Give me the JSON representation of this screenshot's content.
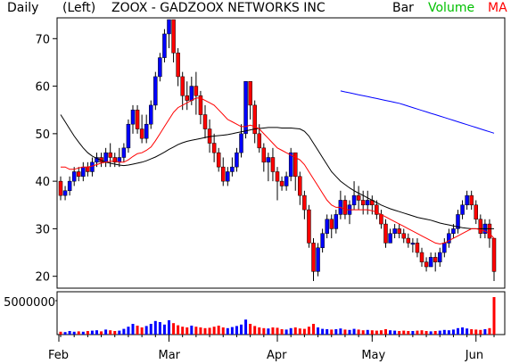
{
  "header": {
    "period": "Daily",
    "scale": "(Left)",
    "title": "ZOOX - GADZOOX NETWORKS INC",
    "bar_label": "Bar",
    "volume_label": "Volume",
    "ma_label": "MA"
  },
  "colors": {
    "background": "#ffffff",
    "up": "#0000ff",
    "down": "#ff0000",
    "ma_fast": "#ff0000",
    "ma_mid": "#000000",
    "ma_slow": "#0000ff",
    "volume_label": "#00c000",
    "ma_label": "#ff0000"
  },
  "chart_data": {
    "type": "candlestick",
    "price_axis": {
      "ticks": [
        20,
        30,
        40,
        50,
        60,
        70
      ],
      "range": [
        17.5,
        74
      ]
    },
    "volume_axis": {
      "ticks": [
        "5000000"
      ],
      "max": 5000000
    },
    "months": [
      "Feb",
      "Mar",
      "Apr",
      "May",
      "Jun"
    ],
    "candles": [
      [
        40,
        37,
        41,
        36
      ],
      [
        37,
        38,
        39,
        36
      ],
      [
        38,
        40,
        41,
        37
      ],
      [
        40,
        42,
        43,
        39
      ],
      [
        42,
        41,
        43,
        40
      ],
      [
        41,
        43,
        44,
        40
      ],
      [
        43,
        42,
        44,
        41
      ],
      [
        42,
        44,
        45,
        41
      ],
      [
        44,
        45,
        46,
        43
      ],
      [
        45,
        44,
        46,
        43
      ],
      [
        44,
        46,
        47,
        43
      ],
      [
        46,
        45,
        48,
        43
      ],
      [
        45,
        44,
        46,
        43
      ],
      [
        44,
        45,
        47,
        43
      ],
      [
        45,
        47,
        48,
        44
      ],
      [
        47,
        52,
        53,
        46
      ],
      [
        52,
        55,
        56,
        50
      ],
      [
        55,
        51,
        56,
        50
      ],
      [
        51,
        49,
        54,
        48
      ],
      [
        49,
        52,
        54,
        48
      ],
      [
        52,
        56,
        57,
        51
      ],
      [
        56,
        62,
        63,
        55
      ],
      [
        62,
        66,
        67,
        61
      ],
      [
        66,
        71,
        72,
        65
      ],
      [
        71,
        74,
        74,
        68
      ],
      [
        74,
        67,
        74,
        65
      ],
      [
        67,
        62,
        68,
        60
      ],
      [
        62,
        58,
        63,
        55
      ],
      [
        58,
        57,
        61,
        55
      ],
      [
        57,
        60,
        62,
        56
      ],
      [
        60,
        58,
        63,
        54
      ],
      [
        58,
        54,
        59,
        52
      ],
      [
        54,
        51,
        56,
        49
      ],
      [
        51,
        48,
        53,
        46
      ],
      [
        48,
        46,
        50,
        44
      ],
      [
        46,
        43,
        47,
        42
      ],
      [
        43,
        40,
        45,
        39
      ],
      [
        40,
        42,
        43,
        39
      ],
      [
        42,
        43,
        45,
        41
      ],
      [
        43,
        46,
        47,
        42
      ],
      [
        46,
        50,
        52,
        45
      ],
      [
        50,
        61,
        61,
        49
      ],
      [
        61,
        56,
        61,
        53
      ],
      [
        56,
        50,
        57,
        48
      ],
      [
        50,
        47,
        52,
        46
      ],
      [
        47,
        44,
        48,
        42
      ],
      [
        44,
        45,
        46,
        40
      ],
      [
        45,
        42,
        47,
        40
      ],
      [
        42,
        40,
        43,
        36
      ],
      [
        40,
        39,
        41,
        38
      ],
      [
        39,
        41,
        42,
        38
      ],
      [
        41,
        46,
        47,
        40
      ],
      [
        46,
        41,
        46,
        38
      ],
      [
        41,
        37,
        42,
        35
      ],
      [
        37,
        34,
        38,
        32
      ],
      [
        34,
        27,
        35,
        26
      ],
      [
        27,
        21,
        28,
        19
      ],
      [
        21,
        26,
        27,
        20
      ],
      [
        26,
        29,
        30,
        25
      ],
      [
        29,
        32,
        33,
        28
      ],
      [
        32,
        30,
        33,
        28
      ],
      [
        30,
        33,
        34,
        29
      ],
      [
        33,
        36,
        38,
        32
      ],
      [
        36,
        33,
        37,
        32
      ],
      [
        33,
        35,
        36,
        31
      ],
      [
        35,
        37,
        40,
        34
      ],
      [
        37,
        36,
        39,
        34
      ],
      [
        36,
        35,
        38,
        33
      ],
      [
        35,
        36,
        38,
        33
      ],
      [
        36,
        35,
        37,
        33
      ],
      [
        35,
        33,
        36,
        32
      ],
      [
        33,
        31,
        34,
        30
      ],
      [
        31,
        27,
        32,
        26
      ],
      [
        27,
        29,
        30,
        27
      ],
      [
        29,
        30,
        31,
        28
      ],
      [
        30,
        29,
        31,
        28
      ],
      [
        29,
        28,
        30,
        27
      ],
      [
        28,
        27,
        29,
        26
      ],
      [
        27,
        27,
        28,
        25
      ],
      [
        27,
        25,
        28,
        24
      ],
      [
        25,
        23,
        26,
        22
      ],
      [
        23,
        22,
        24,
        21
      ],
      [
        22,
        24,
        25,
        22
      ],
      [
        24,
        23,
        25,
        21
      ],
      [
        23,
        25,
        26,
        22
      ],
      [
        25,
        27,
        28,
        24
      ],
      [
        27,
        29,
        30,
        26
      ],
      [
        29,
        30,
        31,
        28
      ],
      [
        30,
        33,
        34,
        29
      ],
      [
        33,
        35,
        36,
        32
      ],
      [
        35,
        37,
        38,
        34
      ],
      [
        37,
        35,
        38,
        34
      ],
      [
        35,
        32,
        36,
        31
      ],
      [
        32,
        29,
        33,
        28
      ],
      [
        29,
        31,
        32,
        28
      ],
      [
        31,
        28,
        32,
        26
      ],
      [
        28,
        21,
        28,
        19
      ]
    ],
    "volume": [
      0.08,
      0.07,
      0.1,
      0.08,
      0.09,
      0.08,
      0.1,
      0.11,
      0.12,
      0.09,
      0.14,
      0.12,
      0.1,
      0.11,
      0.16,
      0.22,
      0.3,
      0.25,
      0.2,
      0.24,
      0.3,
      0.38,
      0.35,
      0.28,
      0.4,
      0.32,
      0.26,
      0.22,
      0.2,
      0.25,
      0.22,
      0.2,
      0.18,
      0.19,
      0.22,
      0.25,
      0.2,
      0.18,
      0.21,
      0.24,
      0.28,
      0.42,
      0.3,
      0.24,
      0.2,
      0.18,
      0.17,
      0.2,
      0.19,
      0.15,
      0.14,
      0.18,
      0.2,
      0.17,
      0.16,
      0.22,
      0.3,
      0.2,
      0.16,
      0.15,
      0.14,
      0.15,
      0.17,
      0.14,
      0.13,
      0.16,
      0.14,
      0.12,
      0.13,
      0.12,
      0.11,
      0.12,
      0.15,
      0.12,
      0.11,
      0.1,
      0.11,
      0.1,
      0.1,
      0.11,
      0.12,
      0.1,
      0.09,
      0.1,
      0.11,
      0.13,
      0.12,
      0.14,
      0.18,
      0.2,
      0.17,
      0.15,
      0.14,
      0.13,
      0.15,
      0.18,
      1.05
    ],
    "ma_fast": [
      43,
      43,
      42.5,
      42.5,
      42.8,
      43,
      43,
      43.2,
      43.5,
      43.8,
      44,
      44.2,
      44.2,
      44,
      44,
      44.5,
      45.2,
      45.8,
      46,
      46.5,
      47.2,
      48.5,
      50,
      51.5,
      53,
      54.5,
      55.5,
      56,
      56.5,
      57,
      57.5,
      57.5,
      57,
      56.5,
      56,
      55,
      54,
      53,
      52.5,
      52,
      51.5,
      51.5,
      51.8,
      51.5,
      51,
      50,
      49,
      48,
      47,
      46.5,
      46,
      45.5,
      45,
      44.5,
      43.5,
      42,
      40.5,
      39,
      37.5,
      36,
      35,
      34.5,
      34.5,
      34,
      34,
      34,
      34,
      34,
      34,
      33.8,
      33.5,
      33,
      32.5,
      32,
      31.5,
      31,
      30.5,
      30,
      29.5,
      29,
      28.5,
      28,
      27.5,
      27,
      26.8,
      27,
      27.5,
      28,
      28.5,
      29,
      29.5,
      30,
      30,
      29.8,
      29.5,
      29,
      28
    ],
    "ma_mid": [
      54,
      52.5,
      51,
      49.5,
      48.2,
      47,
      46,
      45.3,
      44.8,
      44.4,
      44,
      43.8,
      43.6,
      43.4,
      43.3,
      43.4,
      43.6,
      43.8,
      44,
      44.3,
      44.7,
      45.1,
      45.6,
      46.1,
      46.7,
      47.2,
      47.7,
      48.1,
      48.4,
      48.6,
      48.8,
      49,
      49.2,
      49.4,
      49.5,
      49.6,
      49.7,
      49.8,
      50,
      50.2,
      50.4,
      50.6,
      50.8,
      51,
      51.1,
      51.2,
      51.3,
      51.3,
      51.3,
      51.2,
      51.2,
      51.2,
      51.1,
      51,
      50.5,
      49.5,
      48,
      46.5,
      45,
      43.5,
      42,
      41,
      40,
      39.3,
      38.6,
      38,
      37.5,
      37,
      36.5,
      36,
      35.5,
      35,
      34.6,
      34.2,
      33.9,
      33.6,
      33.3,
      33,
      32.7,
      32.4,
      32.2,
      32,
      31.8,
      31.5,
      31.2,
      31,
      30.8,
      30.6,
      30.4,
      30.2,
      30.1,
      30,
      30,
      30,
      30,
      30,
      30
    ],
    "ma_slow": [
      null,
      null,
      null,
      null,
      null,
      null,
      null,
      null,
      null,
      null,
      null,
      null,
      null,
      null,
      null,
      null,
      null,
      null,
      null,
      null,
      null,
      null,
      null,
      null,
      null,
      null,
      null,
      null,
      null,
      null,
      null,
      null,
      null,
      null,
      null,
      null,
      null,
      null,
      null,
      null,
      null,
      null,
      null,
      null,
      null,
      null,
      null,
      null,
      null,
      null,
      null,
      null,
      null,
      null,
      null,
      null,
      null,
      null,
      null,
      null,
      null,
      null,
      59,
      58.8,
      58.6,
      58.4,
      58.2,
      58,
      57.8,
      57.6,
      57.4,
      57.2,
      57,
      56.8,
      56.6,
      56.4,
      56.1,
      55.8,
      55.5,
      55.2,
      54.9,
      54.6,
      54.3,
      54,
      53.7,
      53.4,
      53.1,
      52.8,
      52.5,
      52.2,
      51.9,
      51.6,
      51.3,
      51,
      50.7,
      50.4,
      50.1
    ]
  }
}
